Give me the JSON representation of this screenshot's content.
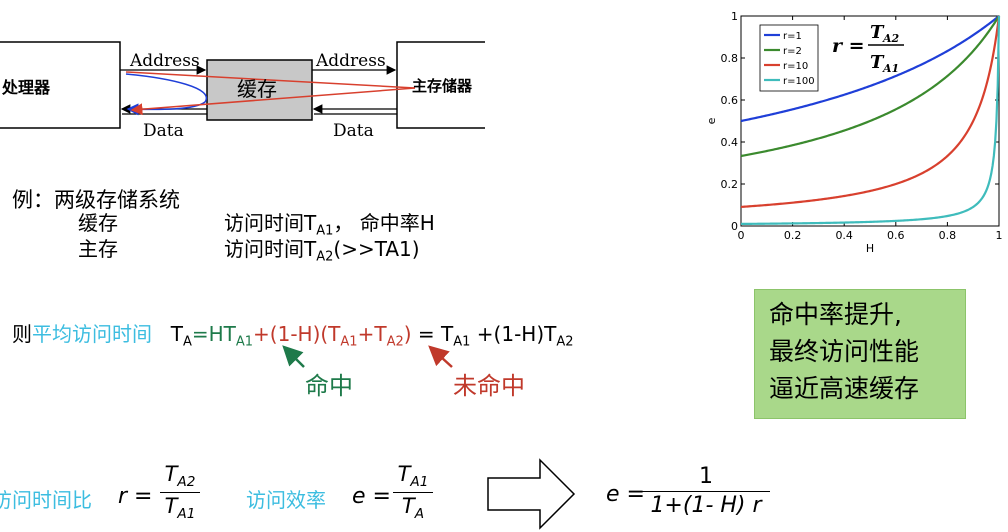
{
  "diagram": {
    "processor": "处理器",
    "cache": "缓存",
    "main_memory": "主存储器",
    "address": "Address",
    "data": "Data"
  },
  "chart_data": {
    "type": "line",
    "xlabel": "H",
    "ylabel": "e",
    "xlim": [
      0,
      1
    ],
    "ylim": [
      0,
      1
    ],
    "xticks": [
      "0",
      "0.2",
      "0.4",
      "0.6",
      "0.8",
      "1"
    ],
    "yticks": [
      "0",
      "0.2",
      "0.4",
      "0.6",
      "0.8",
      "1"
    ],
    "legend_position": "top-left",
    "formula": {
      "r": "r =",
      "num": "T",
      "num_sub": "A2",
      "den": "T",
      "den_sub": "A1"
    },
    "series": [
      {
        "name": "r=1",
        "r": 1,
        "color": "#1f3fd8"
      },
      {
        "name": "r=2",
        "r": 2,
        "color": "#3b8a2e"
      },
      {
        "name": "r=10",
        "r": 10,
        "color": "#d8402e"
      },
      {
        "name": "r=100",
        "r": 100,
        "color": "#3fbcbc"
      }
    ]
  },
  "example": {
    "title": "例：两级存储系统",
    "cache_label": "缓存",
    "cache_desc": "访问时间T",
    "cache_sub": "A1",
    "cache_hit": "，  命中率H",
    "main_label": "主存",
    "main_desc": "访问时间T",
    "main_sub": "A2",
    "main_rest": "(>>TA1)"
  },
  "avg": {
    "then": "则",
    "label": "平均访问时间",
    "ta": "T",
    "ta_sub": "A",
    "eq_ht": "=HT",
    "sub_a1": "A1",
    "plus_miss": "+(1-H)(T",
    "plus_t": "+T",
    "sub_a2": "A2",
    "close": ")",
    "eq": " = T",
    "tail": " +(1-H)T",
    "hit": "命中",
    "miss": "未命中"
  },
  "callout": {
    "line1": "命中率提升,",
    "line2": "最终访问性能",
    "line3": "逼近高速缓存"
  },
  "bottom": {
    "ratio_label": "访问时间比",
    "r_eq": "r =",
    "r_num": "T",
    "r_num_sub": "A2",
    "r_den": "T",
    "r_den_sub": "A1",
    "eff_label": "访问效率",
    "e_eq": "e =",
    "e_num": "T",
    "e_num_sub": "A1",
    "e_den": "T",
    "e_den_sub": "A",
    "result_e": "e =",
    "result_num": "1",
    "result_den": "1+(1- H) r"
  }
}
